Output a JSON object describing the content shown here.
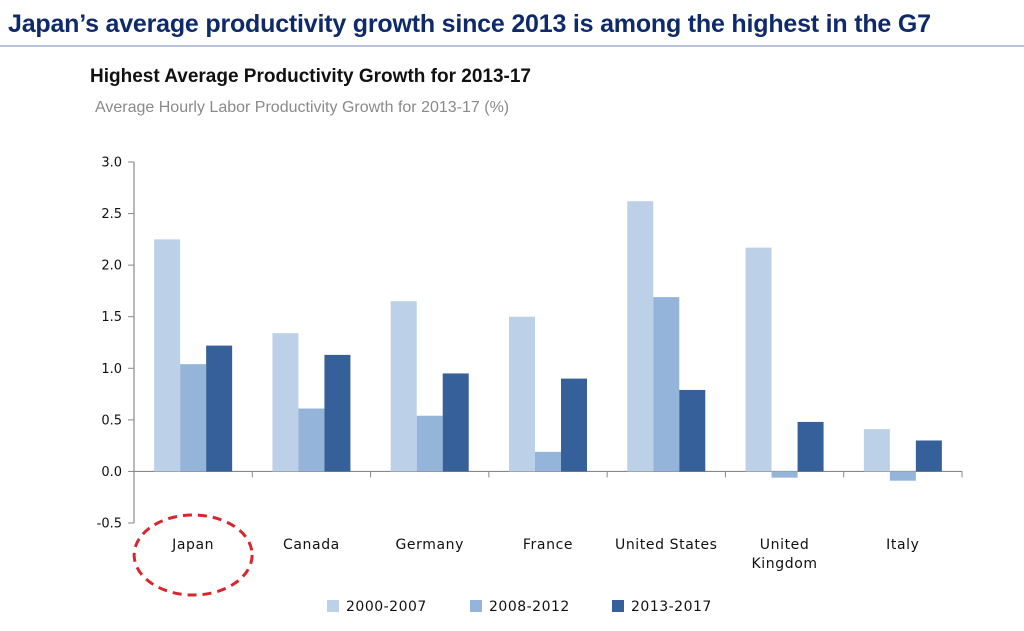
{
  "headline": "Japan’s average productivity growth since 2013 is among the highest in the G7",
  "colors": {
    "headline": "#0f2a6b",
    "series": [
      "#bcd0e8",
      "#95b4da",
      "#35609a"
    ],
    "highlight_circle": "#d9262c"
  },
  "chart_data": {
    "type": "bar",
    "title": "Highest Average Productivity Growth for 2013-17",
    "subtitle": "Average Hourly Labor Productivity Growth for  2013-17 (%)",
    "categories": [
      "Japan",
      "Canada",
      "Germany",
      "France",
      "United States",
      "United Kingdom",
      "Italy"
    ],
    "category_lines": [
      [
        "Japan"
      ],
      [
        "Canada"
      ],
      [
        "Germany"
      ],
      [
        "France"
      ],
      [
        "United States"
      ],
      [
        "United",
        "Kingdom"
      ],
      [
        "Italy"
      ]
    ],
    "series": [
      {
        "name": "2000-2007",
        "values": [
          2.25,
          1.34,
          1.65,
          1.5,
          2.62,
          2.17,
          0.41
        ]
      },
      {
        "name": "2008-2012",
        "values": [
          1.04,
          0.61,
          0.54,
          0.19,
          1.69,
          -0.06,
          -0.09
        ]
      },
      {
        "name": "2013-2017",
        "values": [
          1.22,
          1.13,
          0.95,
          0.9,
          0.79,
          0.48,
          0.3
        ]
      }
    ],
    "ylim": [
      -0.5,
      3.0
    ],
    "yticks": [
      "3.0",
      "2.5",
      "2.0",
      "1.5",
      "1.0",
      "0.5",
      "0.0",
      "-0.5"
    ],
    "grid": false,
    "legend_position": "bottom",
    "highlighted_category": "Japan"
  }
}
